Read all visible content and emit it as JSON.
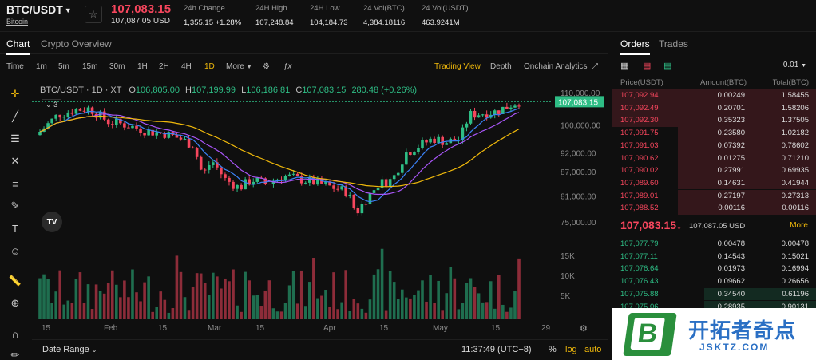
{
  "header": {
    "pair": "BTC/USDT",
    "pair_sub": "Bitcoin",
    "last_price": "107,083.15",
    "last_price_usd": "107,087.05 USD",
    "stats": [
      {
        "label": "24h Change",
        "value": "1,355.15 +1.28%",
        "tone": "green"
      },
      {
        "label": "24H High",
        "value": "107,248.84",
        "tone": "normal"
      },
      {
        "label": "24H Low",
        "value": "104,184.73",
        "tone": "normal"
      },
      {
        "label": "24 Vol(BTC)",
        "value": "4,384.18116",
        "tone": "normal"
      },
      {
        "label": "24 Vol(USDT)",
        "value": "463.9241M",
        "tone": "normal"
      }
    ]
  },
  "chart_tabs": [
    "Chart",
    "Crypto Overview"
  ],
  "toolbar": {
    "intervals": [
      "Time",
      "1m",
      "5m",
      "15m",
      "30m",
      "1H",
      "2H",
      "4H",
      "1D",
      "More"
    ],
    "active_interval": "1D",
    "views": [
      "Trading View",
      "Depth",
      "Onchain Analytics"
    ],
    "active_view": "Trading View"
  },
  "legend": {
    "symbol": "BTC/USDT · 1D · XT",
    "open_label": "O",
    "open": "106,805.00",
    "high_label": "H",
    "high": "107,199.99",
    "low_label": "L",
    "low": "106,186.81",
    "close_label": "C",
    "close": "107,083.15",
    "change": "280.48 (+0.26%)",
    "indicator_count": "3"
  },
  "price_axis": [
    "110,000.00",
    "100,000.00",
    "92,000.00",
    "87,000.00",
    "81,000.00",
    "75,000.00"
  ],
  "current_price_tag": "107,083.15",
  "volume_axis": [
    "15K",
    "10K",
    "5K"
  ],
  "time_axis": [
    "15",
    "Feb",
    "15",
    "Mar",
    "15",
    "Apr",
    "15",
    "May",
    "15",
    "29"
  ],
  "bottom_bar": {
    "date_range": "Date Range",
    "clock": "11:37:49 (UTC+8)",
    "percent": "%",
    "log": "log",
    "auto": "auto"
  },
  "orderbook": {
    "tabs": [
      "Orders",
      "Trades"
    ],
    "precision": "0.01",
    "headers": [
      "Price(USDT)",
      "Amount(BTC)",
      "Total(BTC)"
    ],
    "asks": [
      {
        "price": "107,092.94",
        "amount": "0.00249",
        "total": "1.58455",
        "depth": 1.0
      },
      {
        "price": "107,092.49",
        "amount": "0.20701",
        "total": "1.58206",
        "depth": 1.0
      },
      {
        "price": "107,092.30",
        "amount": "0.35323",
        "total": "1.37505",
        "depth": 1.0
      },
      {
        "price": "107,091.75",
        "amount": "0.23580",
        "total": "1.02182",
        "depth": 0.68
      },
      {
        "price": "107,091.03",
        "amount": "0.07392",
        "total": "0.78602",
        "depth": 0.68
      },
      {
        "price": "107,090.62",
        "amount": "0.01275",
        "total": "0.71210",
        "depth": 0.68
      },
      {
        "price": "107,090.02",
        "amount": "0.27991",
        "total": "0.69935",
        "depth": 0.68
      },
      {
        "price": "107,089.60",
        "amount": "0.14631",
        "total": "0.41944",
        "depth": 0.68
      },
      {
        "price": "107,089.01",
        "amount": "0.27197",
        "total": "0.27313",
        "depth": 0.68
      },
      {
        "price": "107,088.52",
        "amount": "0.00116",
        "total": "0.00116",
        "depth": 0.68
      }
    ],
    "mid_price": "107,083.15",
    "mid_arrow": "↓",
    "mid_usd": "107,087.05 USD",
    "more": "More",
    "bids": [
      {
        "price": "107,077.79",
        "amount": "0.00478",
        "total": "0.00478",
        "depth": 0.0
      },
      {
        "price": "107,077.11",
        "amount": "0.14543",
        "total": "0.15021",
        "depth": 0.0
      },
      {
        "price": "107,076.64",
        "amount": "0.01973",
        "total": "0.16994",
        "depth": 0.0
      },
      {
        "price": "107,076.43",
        "amount": "0.09662",
        "total": "0.26656",
        "depth": 0.0
      },
      {
        "price": "107,075.88",
        "amount": "0.34540",
        "total": "0.61196",
        "depth": 0.55
      },
      {
        "price": "107,075.06",
        "amount": "0.28935",
        "total": "0.90131",
        "depth": 0.55
      }
    ]
  },
  "watermark": {
    "cn": "开拓者奇点",
    "url": "JSKTZ.COM",
    "logo_letter": "B"
  },
  "colors": {
    "up": "#2ebd85",
    "down": "#f6465d",
    "accent": "#f0b90b",
    "bg": "#0f0f0f"
  }
}
